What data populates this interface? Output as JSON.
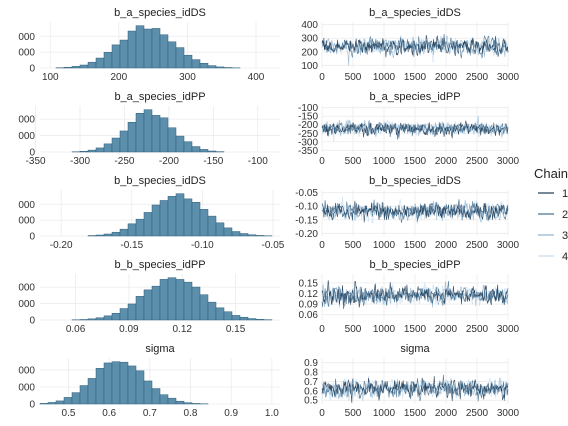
{
  "colors": {
    "hist_fill": "#5b8fac",
    "hist_stroke": "#2f5f7a",
    "grid": "#ebebeb",
    "axis_text": "#333333",
    "chain_colors": [
      "#1c3a55",
      "#3f6d8f",
      "#8fb4cf",
      "#c6ddee"
    ]
  },
  "legend": {
    "title": "Chain",
    "items": [
      "1",
      "2",
      "3",
      "4"
    ],
    "position": "right"
  },
  "chart_data": [
    {
      "type": "bar",
      "title": "b_a_species_idDS",
      "x_ticks": [
        "100",
        "200",
        "300",
        "400"
      ],
      "x_tick_values": [
        100,
        200,
        300,
        400
      ],
      "xlim": [
        85,
        435
      ],
      "y_tick_labels": [
        "000",
        "000",
        "0"
      ],
      "y_tick_values": [
        1000,
        500,
        0
      ],
      "ylim": [
        0,
        1450
      ],
      "distribution": {
        "mean": 240,
        "sd": 40
      },
      "grid": true
    },
    {
      "type": "line",
      "title": "b_a_species_idDS",
      "x_ticks": [
        "0",
        "500",
        "1000",
        "1500",
        "2000",
        "2500",
        "3000"
      ],
      "x_tick_values": [
        0,
        500,
        1000,
        1500,
        2000,
        2500,
        3000
      ],
      "xlim": [
        0,
        3000
      ],
      "y_ticks": [
        "400",
        "300",
        "200",
        "100"
      ],
      "y_tick_values": [
        400,
        300,
        200,
        100
      ],
      "ylim": [
        80,
        420
      ],
      "series_summary": {
        "center": 240,
        "spread": 40,
        "iterations": 3000,
        "chains": 4
      },
      "grid": true
    },
    {
      "type": "bar",
      "title": "b_a_species_idPP",
      "x_ticks": [
        "-350",
        "-300",
        "-250",
        "-200",
        "-150",
        "-100"
      ],
      "x_tick_values": [
        -350,
        -300,
        -250,
        -200,
        -150,
        -100
      ],
      "xlim": [
        -345,
        -75
      ],
      "y_tick_labels": [
        "000",
        "000",
        "0"
      ],
      "y_tick_values": [
        1000,
        500,
        0
      ],
      "ylim": [
        0,
        1400
      ],
      "distribution": {
        "mean": -222,
        "sd": 26
      },
      "grid": true
    },
    {
      "type": "line",
      "title": "b_a_species_idPP",
      "x_ticks": [
        "0",
        "500",
        "1000",
        "1500",
        "2000",
        "2500",
        "3000"
      ],
      "x_tick_values": [
        0,
        500,
        1000,
        1500,
        2000,
        2500,
        3000
      ],
      "xlim": [
        0,
        3000
      ],
      "y_ticks": [
        "-100",
        "-150",
        "-200",
        "-250",
        "-300",
        "-350"
      ],
      "y_tick_values": [
        -100,
        -150,
        -200,
        -250,
        -300,
        -350
      ],
      "ylim": [
        -360,
        -90
      ],
      "series_summary": {
        "center": -222,
        "spread": 26,
        "iterations": 3000,
        "chains": 4
      },
      "grid": true
    },
    {
      "type": "bar",
      "title": "b_b_species_idDS",
      "x_ticks": [
        "-0.20",
        "-0.15",
        "-0.10",
        "-0.05"
      ],
      "x_tick_values": [
        -0.2,
        -0.15,
        -0.1,
        -0.05
      ],
      "xlim": [
        -0.215,
        -0.045
      ],
      "y_tick_labels": [
        "000",
        "000",
        "0"
      ],
      "y_tick_values": [
        1000,
        500,
        0
      ],
      "ylim": [
        0,
        1450
      ],
      "distribution": {
        "mean": -0.118,
        "sd": 0.02
      },
      "grid": true
    },
    {
      "type": "line",
      "title": "b_b_species_idDS",
      "x_ticks": [
        "0",
        "500",
        "1000",
        "1500",
        "2000",
        "2500",
        "3000"
      ],
      "x_tick_values": [
        0,
        500,
        1000,
        1500,
        2000,
        2500,
        3000
      ],
      "xlim": [
        0,
        3000
      ],
      "y_ticks": [
        "-0.05",
        "-0.10",
        "-0.15",
        "-0.20"
      ],
      "y_tick_values": [
        -0.05,
        -0.1,
        -0.15,
        -0.2
      ],
      "ylim": [
        -0.21,
        -0.04
      ],
      "series_summary": {
        "center": -0.118,
        "spread": 0.02,
        "iterations": 3000,
        "chains": 4
      },
      "grid": true
    },
    {
      "type": "bar",
      "title": "b_b_species_idPP",
      "x_ticks": [
        "0.06",
        "0.09",
        "0.12",
        "0.15"
      ],
      "x_tick_values": [
        0.06,
        0.09,
        0.12,
        0.15
      ],
      "xlim": [
        0.04,
        0.175
      ],
      "y_tick_labels": [
        "000",
        "000",
        "0"
      ],
      "y_tick_values": [
        1000,
        500,
        0
      ],
      "ylim": [
        0,
        1400
      ],
      "distribution": {
        "mean": 0.115,
        "sd": 0.017
      },
      "grid": true
    },
    {
      "type": "line",
      "title": "b_b_species_idPP",
      "x_ticks": [
        "0",
        "500",
        "1000",
        "1500",
        "2000",
        "2500",
        "3000"
      ],
      "x_tick_values": [
        0,
        500,
        1000,
        1500,
        2000,
        2500,
        3000
      ],
      "xlim": [
        0,
        3000
      ],
      "y_ticks": [
        "0.15",
        "0.12",
        "0.09",
        "0.06"
      ],
      "y_tick_values": [
        0.15,
        0.12,
        0.09,
        0.06
      ],
      "ylim": [
        0.045,
        0.175
      ],
      "series_summary": {
        "center": 0.115,
        "spread": 0.017,
        "iterations": 3000,
        "chains": 4
      },
      "grid": true
    },
    {
      "type": "bar",
      "title": "sigma",
      "x_ticks": [
        "0.5",
        "0.6",
        "0.7",
        "0.8",
        "0.9",
        "1.0"
      ],
      "x_tick_values": [
        0.5,
        0.6,
        0.7,
        0.8,
        0.9,
        1.0
      ],
      "xlim": [
        0.43,
        1.02
      ],
      "y_tick_labels": [
        "000",
        "000",
        "0"
      ],
      "y_tick_values": [
        1000,
        500,
        0
      ],
      "ylim": [
        0,
        1350
      ],
      "distribution": {
        "mean": 0.61,
        "sd": 0.065,
        "skew": 0.09
      },
      "grid": true
    },
    {
      "type": "line",
      "title": "sigma",
      "x_ticks": [
        "0",
        "500",
        "1000",
        "1500",
        "2000",
        "2500",
        "3000"
      ],
      "x_tick_values": [
        0,
        500,
        1000,
        1500,
        2000,
        2500,
        3000
      ],
      "xlim": [
        0,
        3000
      ],
      "y_ticks": [
        "0.9",
        "0.8",
        "0.7",
        "0.6",
        "0.5"
      ],
      "y_tick_values": [
        0.9,
        0.8,
        0.7,
        0.6,
        0.5
      ],
      "ylim": [
        0.46,
        0.95
      ],
      "series_summary": {
        "center": 0.62,
        "spread": 0.06,
        "iterations": 3000,
        "chains": 4
      },
      "grid": true
    }
  ]
}
